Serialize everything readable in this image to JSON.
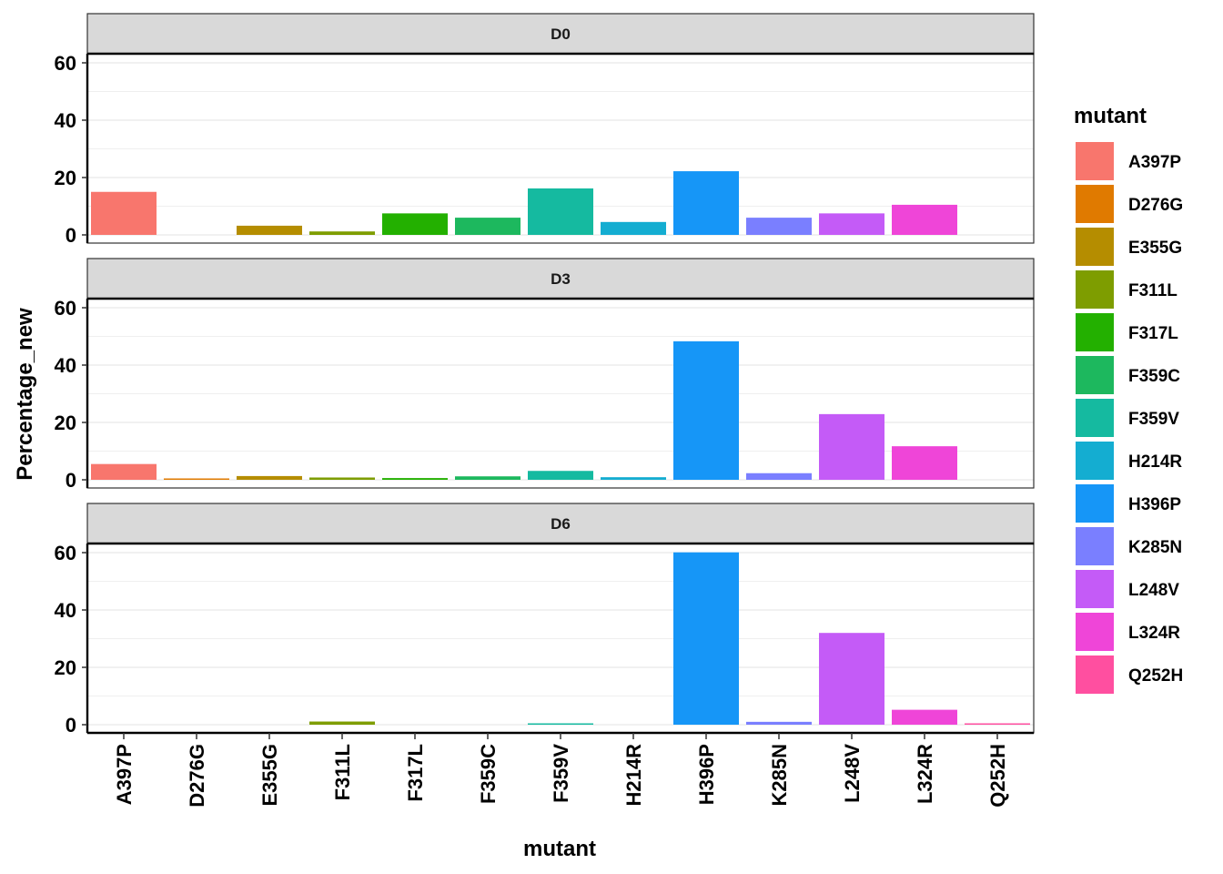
{
  "chart_data": {
    "type": "bar",
    "facet_by": "day",
    "categories": [
      "A397P",
      "D276G",
      "E355G",
      "F311L",
      "F317L",
      "F359C",
      "F359V",
      "H214R",
      "H396P",
      "K285N",
      "L248V",
      "L324R",
      "Q252H"
    ],
    "colors": [
      "#F8766D",
      "#DE8C00",
      "#B79F00",
      "#7CAE00",
      "#00BA38",
      "#00C08B",
      "#00BFC4",
      "#00B4F0",
      "#619CFF",
      "#C77CFF",
      "#F564E3",
      "#FF64B0",
      "#FF6C91"
    ],
    "bar_colors": [
      "#F8766D",
      "#E07A00",
      "#B58D00",
      "#7E9D00",
      "#23B000",
      "#1DB85E",
      "#15BAA0",
      "#14ADD1",
      "#1696F7",
      "#7A7FFF",
      "#C45BF7",
      "#EF45D8",
      "#FF4FA0"
    ],
    "panels": [
      {
        "label": "D0",
        "values": [
          15,
          0,
          3.2,
          1.2,
          7.5,
          6,
          16.2,
          4.5,
          22.2,
          6,
          7.5,
          10.5,
          0
        ]
      },
      {
        "label": "D3",
        "values": [
          5.5,
          0.3,
          1.3,
          0.8,
          0.6,
          1.2,
          3.1,
          0.9,
          48.3,
          2.3,
          22.9,
          11.7,
          0
        ]
      },
      {
        "label": "D6",
        "values": [
          0,
          0,
          0,
          1.1,
          0,
          0,
          0.4,
          0,
          60.1,
          1,
          32,
          5.2,
          0.4
        ]
      }
    ],
    "xlabel": "mutant",
    "ylabel": "Percentage_new",
    "ylim": [
      0,
      63
    ],
    "yticks": [
      0,
      20,
      40,
      60
    ],
    "grid": true,
    "legend": {
      "title": "mutant",
      "position": "right",
      "entries": [
        "A397P",
        "D276G",
        "E355G",
        "F311L",
        "F317L",
        "F359C",
        "F359V",
        "H214R",
        "H396P",
        "K285N",
        "L248V",
        "L324R",
        "Q252H"
      ]
    }
  }
}
